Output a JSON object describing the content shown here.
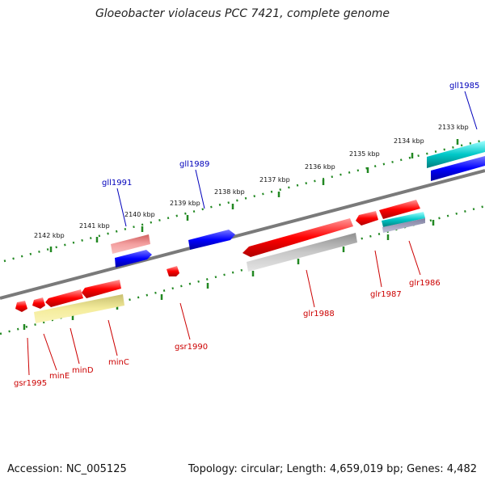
{
  "title": "Gloeobacter violaceus PCC 7421, complete genome",
  "footer": {
    "accession": "Accession: NC_005125",
    "summary": "Topology: circular; Length: 4,659,019 bp; Genes: 4,482"
  },
  "colors": {
    "backbone": "#808080",
    "forward_label": "#0000bb",
    "reverse_label": "#cc0000",
    "ruler": "#228822",
    "gene_red": "#ff0000",
    "gene_blue": "#0000ff",
    "gene_cyan": "#00cccc",
    "cds_pink": "#f08080",
    "cds_yellow": "#f0e68c",
    "cds_gray": "#b0b0b0"
  },
  "ruler_ticks": [
    "2142 kbp",
    "2141 kbp",
    "2140 kbp",
    "2139 kbp",
    "2138 kbp",
    "2137 kbp",
    "2136 kbp",
    "2135 kbp",
    "2134 kbp",
    "2133 kbp"
  ],
  "gene_labels": [
    {
      "text": "gll1985",
      "strand": "forward"
    },
    {
      "text": "gll1989",
      "strand": "forward"
    },
    {
      "text": "gll1991",
      "strand": "forward"
    },
    {
      "text": "glr1986",
      "strand": "reverse"
    },
    {
      "text": "glr1987",
      "strand": "reverse"
    },
    {
      "text": "glr1988",
      "strand": "reverse"
    },
    {
      "text": "gsr1990",
      "strand": "reverse"
    },
    {
      "text": "minC",
      "strand": "reverse"
    },
    {
      "text": "minD",
      "strand": "reverse"
    },
    {
      "text": "minE",
      "strand": "reverse"
    },
    {
      "text": "gsr1995",
      "strand": "reverse"
    }
  ]
}
